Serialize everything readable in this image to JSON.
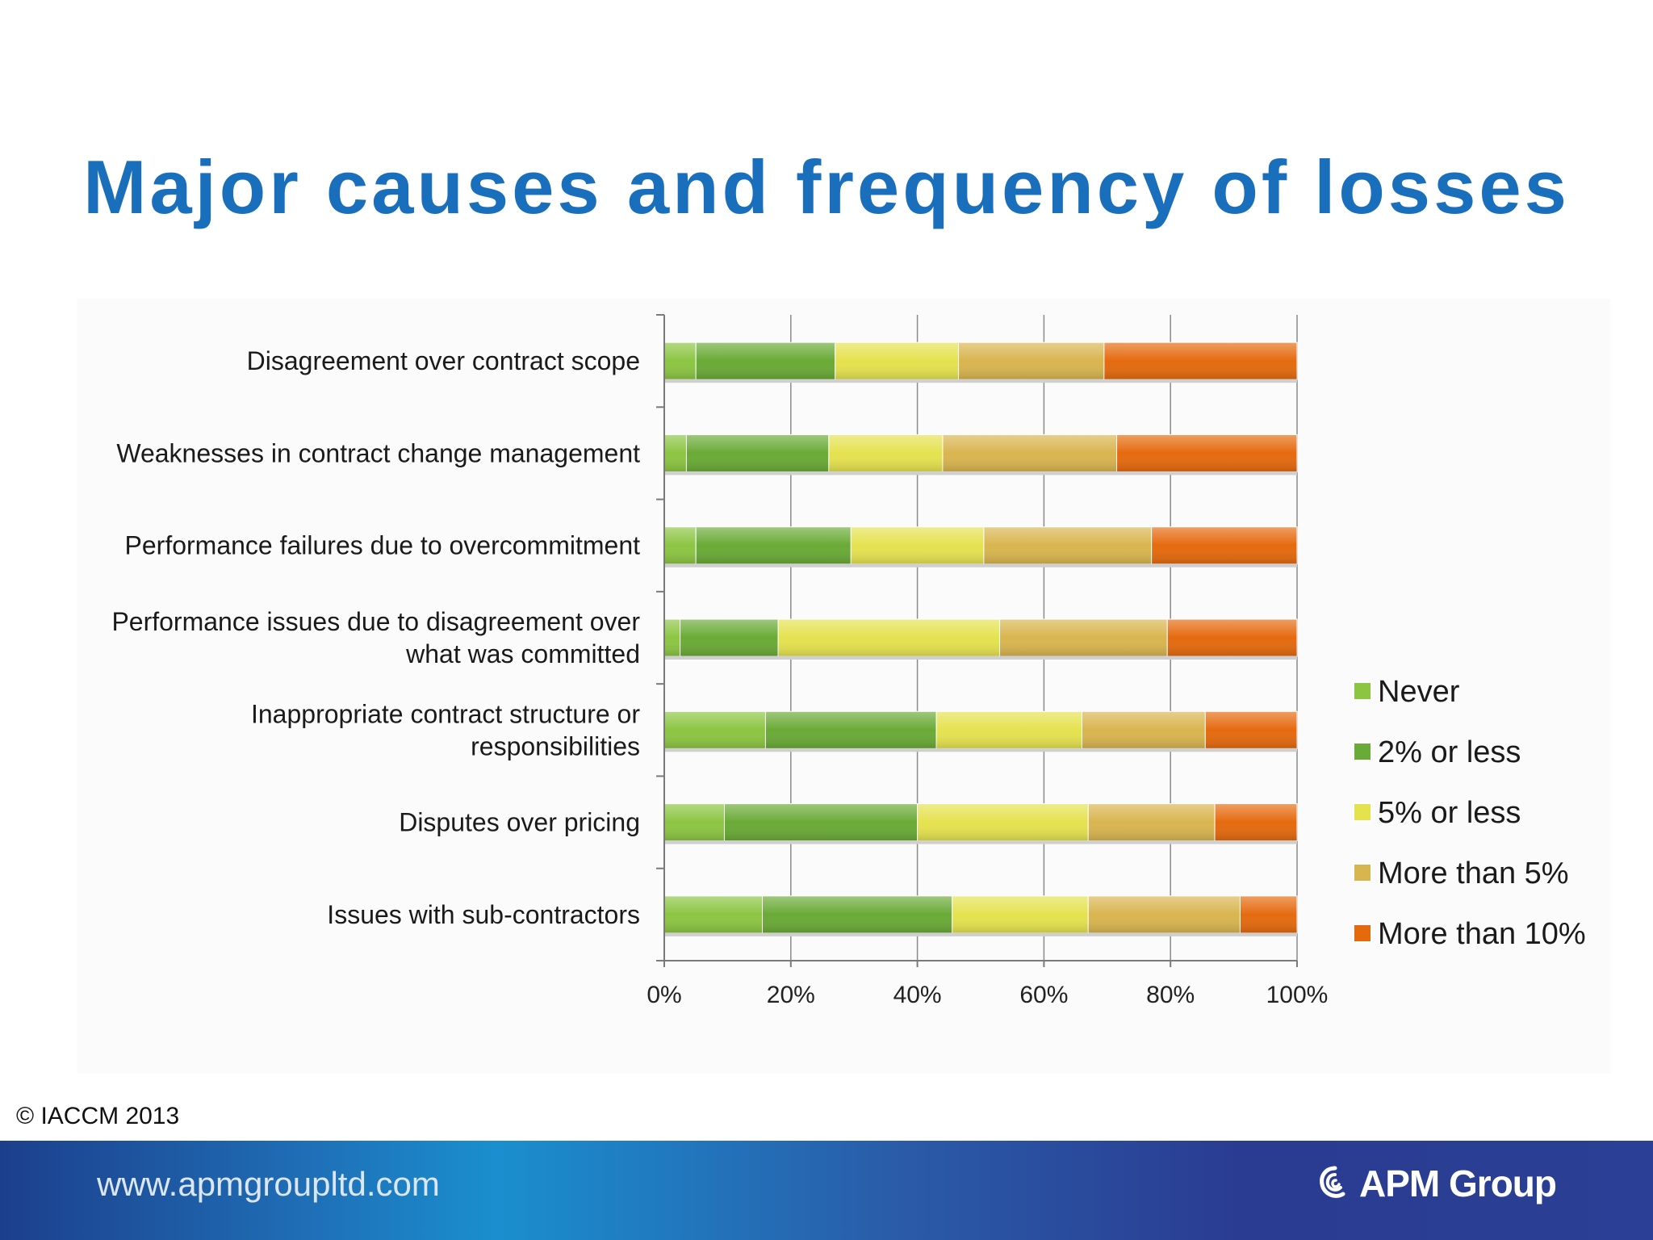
{
  "slide": {
    "title": "Major causes and frequency of losses",
    "copyright": "© IACCM 2013",
    "footer_url": "www.apmgroupltd.com",
    "brand": "APM Group",
    "brand_icon": "swirl-logo-icon",
    "title_color": "#1a6fbd"
  },
  "chart_data": {
    "type": "bar",
    "orientation": "horizontal",
    "stacked": "percent",
    "categories": [
      "Disagreement over contract scope",
      "Weaknesses in contract change management",
      "Performance failures due to overcommitment",
      "Performance issues due to disagreement over what was committed",
      "Inappropriate contract structure or responsibilities",
      "Disputes over pricing",
      "Issues with sub-contractors"
    ],
    "category_lines": [
      [
        "Disagreement over contract scope"
      ],
      [
        "Weaknesses in contract change management"
      ],
      [
        "Performance failures due to overcommitment"
      ],
      [
        "Performance issues due to disagreement over",
        "what was committed"
      ],
      [
        "Inappropriate contract structure or",
        "responsibilities"
      ],
      [
        "Disputes over pricing"
      ],
      [
        "Issues with sub-contractors"
      ]
    ],
    "series": [
      {
        "name": "Never",
        "color": "#8cc542",
        "values": [
          5,
          3.5,
          5,
          2.5,
          16,
          9.5,
          15.5
        ]
      },
      {
        "name": "2% or less",
        "color": "#6aaa36",
        "values": [
          22,
          22.5,
          24.5,
          15.5,
          27,
          30.5,
          30
        ]
      },
      {
        "name": "5% or less",
        "color": "#e5e24f",
        "values": [
          19.5,
          18,
          21,
          35,
          23,
          27,
          21.5
        ]
      },
      {
        "name": "More than 5%",
        "color": "#d9b54f",
        "values": [
          23,
          27.5,
          26.5,
          26.5,
          19.5,
          20,
          24
        ]
      },
      {
        "name": "More than 10%",
        "color": "#e56a0e",
        "values": [
          30.5,
          28.5,
          23,
          20.5,
          14.5,
          13,
          9
        ]
      }
    ],
    "x_ticks": [
      "0%",
      "20%",
      "40%",
      "60%",
      "80%",
      "100%"
    ],
    "xlim": [
      0,
      100
    ],
    "grid": true,
    "legend_position": "right"
  }
}
